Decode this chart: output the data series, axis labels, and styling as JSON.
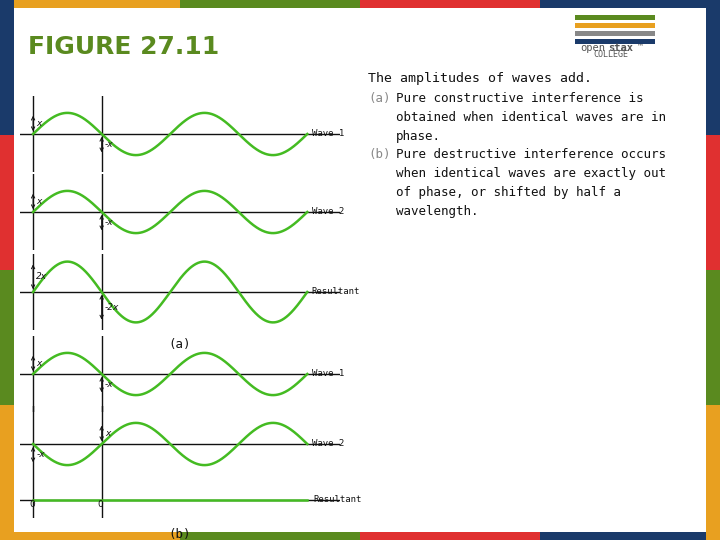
{
  "bg_color": "#e8e8e8",
  "main_bg": "#ffffff",
  "title": "FIGURE 27.11",
  "title_color": "#5a8a1f",
  "title_fontsize": 18,
  "left_border_colors": [
    "#1a3a6a",
    "#e03030",
    "#5a8a1f",
    "#e8a020"
  ],
  "top_border_colors": [
    "#e8a020",
    "#5a8a1f",
    "#e03030",
    "#1a3a6a"
  ],
  "bottom_border_colors": [
    "#e8a020",
    "#5a8a1f",
    "#e03030",
    "#1a3a6a"
  ],
  "right_border_colors": [
    "#e8a020",
    "#5a8a1f",
    "#e03030",
    "#1a3a6a"
  ],
  "wave_color": "#44bb22",
  "axis_color": "#111111",
  "text_color": "#111111",
  "label_a_color": "#888888",
  "label_b_color": "#888888",
  "description_text": "The amplitudes of waves add.",
  "desc_fontsize": 10,
  "item_a_label": "(a)",
  "item_a_text": "Pure constructive interference is\nobtained when identical waves are in\nphase.",
  "item_b_label": "(b)",
  "item_b_text": "Pure destructive interference occurs\nwhen identical waves are exactly out\nof phase, or shifted by half a\nwavelength.",
  "wave1_label": "Wave 1",
  "wave2_label": "Wave 2",
  "resultant_label": "Resultant",
  "caption_a": "(a)",
  "caption_b": "(b)",
  "logo_bar_colors": [
    "#5a8a1f",
    "#e8a020",
    "#888888",
    "#1a3a6a"
  ],
  "logo_open_color": "#555555",
  "logo_stax_color": "#555555",
  "logo_college_color": "#555555"
}
